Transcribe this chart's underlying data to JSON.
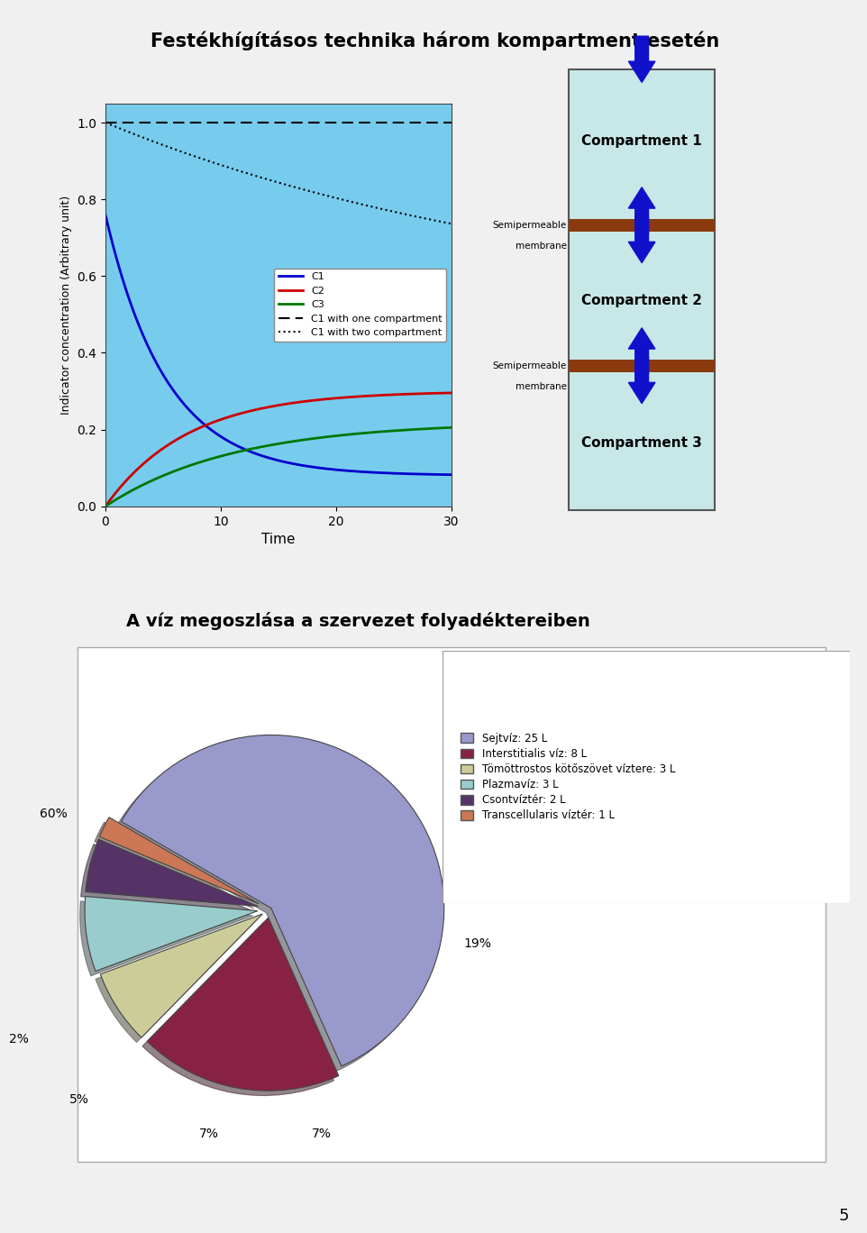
{
  "title1": "Festékhígításos technika három kompartment esetén",
  "slide_bg": "#F0F0F0",
  "panel_bg": "#55BBDD",
  "plot_bg": "#77CCEE",
  "comp_box_bg": "#C8E8E8",
  "membrane_color": "#8B3A10",
  "arrow_color": "#1111CC",
  "ylabel": "Indicator concentration (Arbitrary unit)",
  "xlabel": "Time",
  "yticks": [
    0.0,
    0.2,
    0.4,
    0.6,
    0.8,
    1.0
  ],
  "xticks": [
    0,
    10,
    20,
    30
  ],
  "xlim": [
    0,
    30
  ],
  "ylim": [
    0.0,
    1.05
  ],
  "c1_color": "#0000CC",
  "c2_color": "#CC0000",
  "c3_color": "#007700",
  "c1_one_color": "#000000",
  "c1_two_color": "#000000",
  "compartments": [
    "Compartment 1",
    "Compartment 2",
    "Compartment 3"
  ],
  "semiperm_label1": "Semipermeable",
  "semiperm_label2": "membrane",
  "title2": "A víz megoszlása a szervezet folyadéktereiben",
  "pie_labels": [
    "Sejtvíz: 25 L",
    "Interstitialis víz: 8 L",
    "Tömöttrostos kötőszövet víztere: 3 L",
    "Plazmavíz: 3 L",
    "Csontvíztér: 2 L",
    "Transcellularis víztér: 1 L"
  ],
  "pie_values": [
    60,
    19,
    7,
    7,
    5,
    2
  ],
  "pie_colors": [
    "#9999CC",
    "#882244",
    "#CCCC99",
    "#99CCCC",
    "#553366",
    "#CC7755"
  ],
  "pie_pct_labels": [
    "60%",
    "19%",
    "7%",
    "7%",
    "5%",
    "2%"
  ],
  "page_number": "5"
}
